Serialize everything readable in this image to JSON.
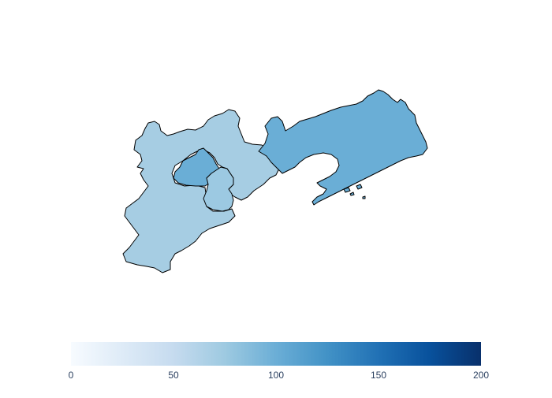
{
  "map": {
    "regions": [
      {
        "name": "Hebei",
        "value": 80,
        "color": "#a6cde3"
      },
      {
        "name": "Beijing",
        "value": 100,
        "color": "#6aaed6"
      },
      {
        "name": "Tianjin",
        "value": 85,
        "color": "#9cc9e2"
      },
      {
        "name": "Liaoning",
        "value": 100,
        "color": "#6aaed6"
      }
    ]
  },
  "colorbar": {
    "min": 0,
    "max": 200,
    "ticks": [
      "0",
      "50",
      "100",
      "150",
      "200"
    ],
    "colors": [
      "#f7fbff",
      "#deebf7",
      "#c6dbef",
      "#9ecae1",
      "#6baed6",
      "#4292c6",
      "#2171b5",
      "#08519c",
      "#08306b"
    ]
  }
}
